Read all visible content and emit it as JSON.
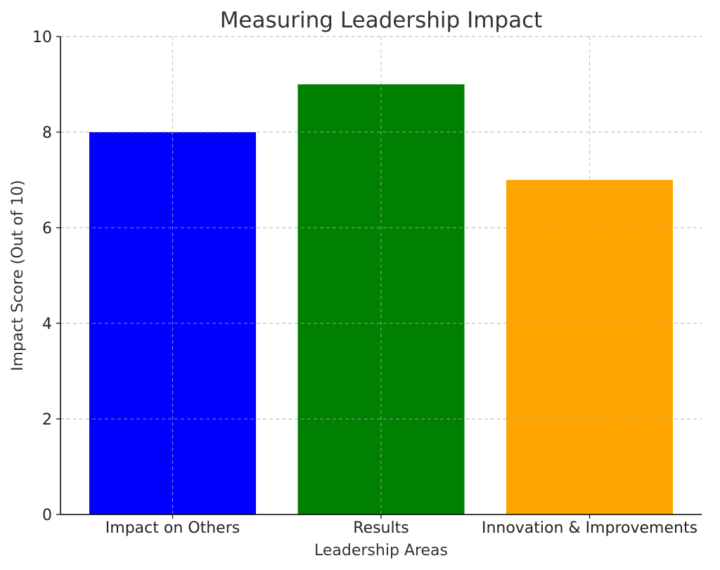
{
  "chart_data": {
    "type": "bar",
    "title": "Measuring Leadership Impact",
    "xlabel": "Leadership Areas",
    "ylabel": "Impact Score (Out of 10)",
    "categories": [
      "Impact on Others",
      "Results",
      "Innovation & Improvements"
    ],
    "values": [
      8,
      9,
      7
    ],
    "colors": [
      "#0000ff",
      "#008000",
      "#ffa500"
    ],
    "ylim": [
      0,
      10
    ],
    "yticks": [
      0,
      2,
      4,
      6,
      8,
      10
    ],
    "grid": true
  }
}
